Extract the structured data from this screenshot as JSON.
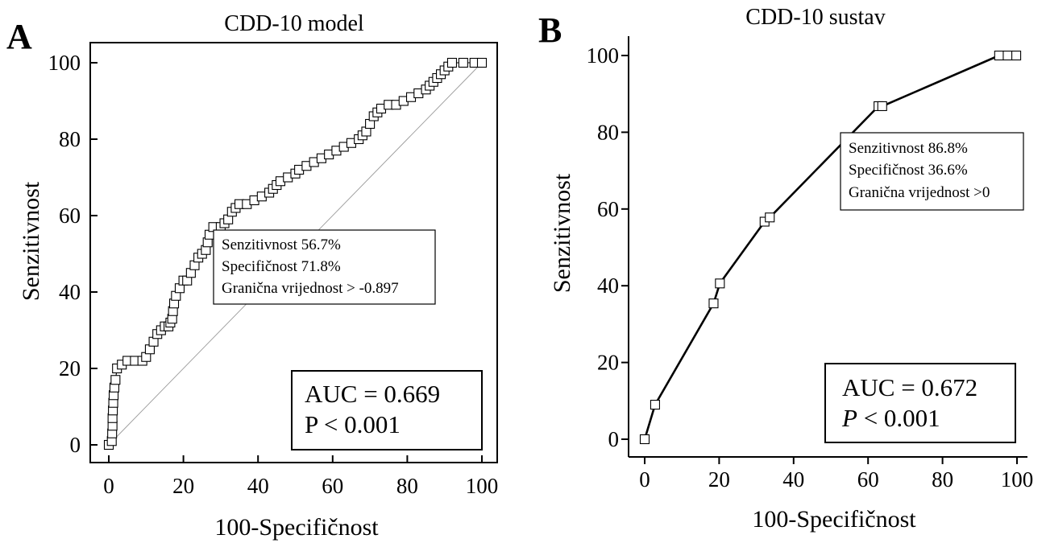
{
  "chart_data": [
    {
      "panel": "A",
      "type": "line",
      "title": "CDD-10 model",
      "xlabel": "100-Specifičnost",
      "ylabel": "Senzitivnost",
      "xlim": [
        0,
        100
      ],
      "ylim": [
        0,
        100
      ],
      "xticks": [
        "0",
        "20",
        "40",
        "60",
        "80",
        "100"
      ],
      "yticks": [
        "0",
        "20",
        "40",
        "60",
        "80",
        "100"
      ],
      "diagonal_reference": true,
      "markers": "open-square",
      "series": [
        {
          "x": [
            0,
            0.8,
            0.9,
            1.0,
            1.0,
            1.1,
            1.2,
            1.3,
            1.5,
            1.8,
            2.2,
            3.5,
            5,
            7,
            9,
            10,
            11,
            12,
            13,
            14,
            15,
            16,
            16.5,
            17,
            17.2,
            17.5,
            18,
            19,
            20,
            21,
            22,
            23,
            24,
            25,
            26,
            26.5,
            27,
            28,
            30,
            31,
            32,
            33,
            34,
            35,
            37,
            39,
            41,
            43,
            44,
            45,
            46,
            48,
            50,
            51,
            53,
            55,
            57,
            59,
            61,
            63,
            65,
            67,
            68,
            69,
            70,
            71,
            72,
            73,
            75,
            77,
            79,
            81,
            83,
            85,
            86,
            87,
            88,
            89,
            90,
            91,
            92,
            95,
            98,
            100
          ],
          "y": [
            0,
            1,
            3,
            5,
            7,
            9,
            11,
            13,
            15,
            17,
            20,
            21,
            22,
            22,
            22,
            23,
            25,
            27,
            29,
            30,
            31,
            31,
            32,
            33,
            35,
            37,
            39,
            41,
            43,
            43,
            45,
            47,
            49,
            50,
            51,
            53,
            55,
            57,
            57,
            58,
            59,
            61,
            62,
            63,
            63,
            64,
            65,
            66,
            67,
            68,
            69,
            70,
            71,
            72,
            73,
            74,
            75,
            76,
            77,
            78,
            79,
            80,
            81,
            82,
            84,
            86,
            87,
            88,
            89,
            89,
            90,
            91,
            92,
            93,
            94,
            95,
            96,
            97,
            98,
            99,
            100,
            100,
            100,
            100
          ]
        }
      ],
      "annotation": [
        "Senzitivnost 56.7%",
        "Specifičnost 71.8%",
        "Granična vrijednost > -0.897"
      ],
      "stats": {
        "auc": "AUC = 0.669",
        "p": "P < 0.001"
      }
    },
    {
      "panel": "B",
      "type": "line",
      "title": "CDD-10 sustav",
      "xlabel": "100-Specifičnost",
      "ylabel": "Senzitivnost",
      "xlim": [
        0,
        100
      ],
      "ylim": [
        0,
        100
      ],
      "xticks": [
        "0",
        "20",
        "40",
        "60",
        "80",
        "100"
      ],
      "yticks": [
        "0",
        "20",
        "40",
        "60",
        "80",
        "100"
      ],
      "markers": "open-square",
      "series": [
        {
          "x": [
            0,
            2.8,
            18.5,
            20.2,
            32.2,
            33.6,
            62.8,
            63.8,
            95.2,
            97.5,
            99.8
          ],
          "y": [
            0,
            9.0,
            35.4,
            40.6,
            56.7,
            57.8,
            86.8,
            86.8,
            100,
            100,
            100
          ]
        }
      ],
      "annotation": [
        "Senzitivnost  86.8%",
        "Specifičnost 36.6%",
        "Granična vrijednost  >0"
      ],
      "stats": {
        "auc": "AUC = 0.672",
        "p_label": "P",
        "p_rest": " < 0.001"
      }
    }
  ],
  "panels": {
    "a": {
      "letter": "A"
    },
    "b": {
      "letter": "B"
    }
  }
}
